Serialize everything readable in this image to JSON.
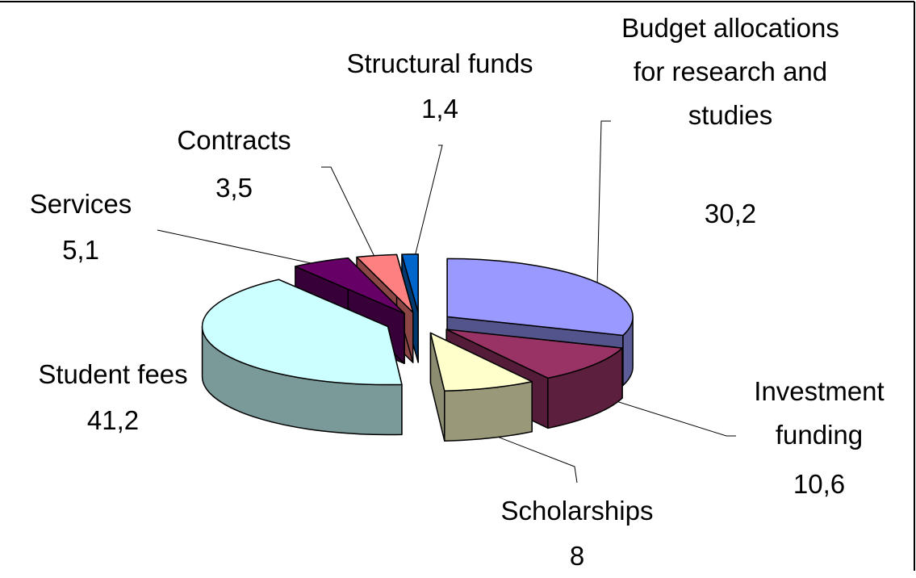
{
  "chart_data": {
    "type": "pie3d",
    "categories": [
      "Budget allocations for research and studies",
      "Investment funding",
      "Scholarships",
      "Student fees",
      "Services",
      "Contracts",
      "Structural funds"
    ],
    "values": [
      30.2,
      10.6,
      8,
      41.2,
      5.1,
      3.5,
      1.4
    ],
    "value_labels": [
      "30,2",
      "10,6",
      "8",
      "41,2",
      "5,1",
      "3,5",
      "1,4"
    ],
    "colors": [
      "#9999ff",
      "#993366",
      "#ffffcc",
      "#ccffff",
      "#660066",
      "#ff8080",
      "#0066cc"
    ]
  }
}
